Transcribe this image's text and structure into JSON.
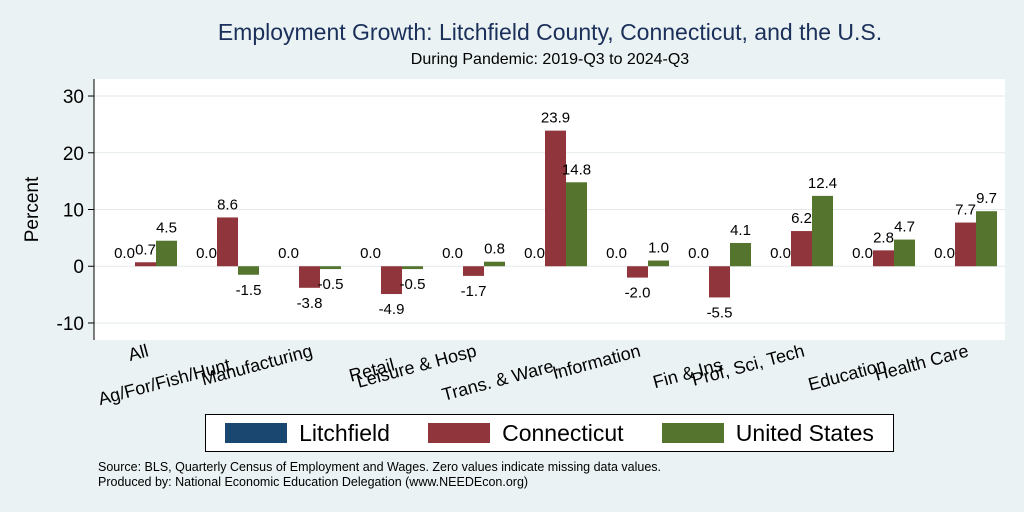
{
  "title": "Employment Growth: Litchfield County, Connecticut, and the U.S.",
  "subtitle": "During Pandemic: 2019-Q3 to 2024-Q3",
  "colors": {
    "litchfield": "#1a476f",
    "connecticut": "#90353b",
    "united_states": "#55752f",
    "plot_bg": "#ffffff",
    "page_bg": "#eaf2f3"
  },
  "legend": {
    "items": [
      {
        "label": "Litchfield",
        "color": "#1a476f"
      },
      {
        "label": "Connecticut",
        "color": "#90353b"
      },
      {
        "label": "United States",
        "color": "#55752f"
      }
    ]
  },
  "source_line1": "Source: BLS, Quarterly Census of Employment and Wages. Zero values indicate missing data values.",
  "source_line2": "Produced by: National Economic Education Delegation (www.NEEDEcon.org)",
  "chart_data": {
    "type": "bar",
    "title": "Employment Growth: Litchfield County, Connecticut, and the U.S.",
    "subtitle": "During Pandemic: 2019-Q3 to 2024-Q3",
    "xlabel": "",
    "ylabel": "Percent",
    "ylim": [
      -13,
      33
    ],
    "yticks": [
      -10,
      0,
      10,
      20,
      30
    ],
    "grid": true,
    "categories": [
      "All",
      "Ag/For/Fish/Hunt",
      "Manufacturing",
      "Retail",
      "Leisure & Hosp",
      "Trans. & Ware.",
      "Information",
      "Fin & Ins",
      "Prof, Sci, Tech",
      "Education",
      "Health Care"
    ],
    "series": [
      {
        "name": "Litchfield",
        "values": [
          0.0,
          0.0,
          0.0,
          0.0,
          0.0,
          0.0,
          0.0,
          0.0,
          0.0,
          0.0,
          0.0
        ]
      },
      {
        "name": "Connecticut",
        "values": [
          0.7,
          8.6,
          -3.8,
          -4.9,
          -1.7,
          23.9,
          -2.0,
          -5.5,
          6.2,
          2.8,
          7.7
        ]
      },
      {
        "name": "United States",
        "values": [
          4.5,
          -1.5,
          -0.5,
          -0.5,
          0.8,
          14.8,
          1.0,
          4.1,
          12.4,
          4.7,
          9.7
        ]
      }
    ],
    "value_labels": [
      [
        "0.0",
        "0.0",
        "0.0",
        "0.0",
        "0.0",
        "0.0",
        "0.0",
        "0.0",
        "0.0",
        "0.0",
        "0.0"
      ],
      [
        "0.7",
        "8.6",
        "-3.8",
        "-4.9",
        "-1.7",
        "23.9",
        "-2.0",
        "-5.5",
        "6.2",
        "2.8",
        "7.7"
      ],
      [
        "4.5",
        "-1.5",
        "-0.5",
        "-0.5",
        "0.8",
        "14.8",
        "1.0",
        "4.1",
        "12.4",
        "4.7",
        "9.7"
      ]
    ],
    "legend_position": "bottom"
  }
}
